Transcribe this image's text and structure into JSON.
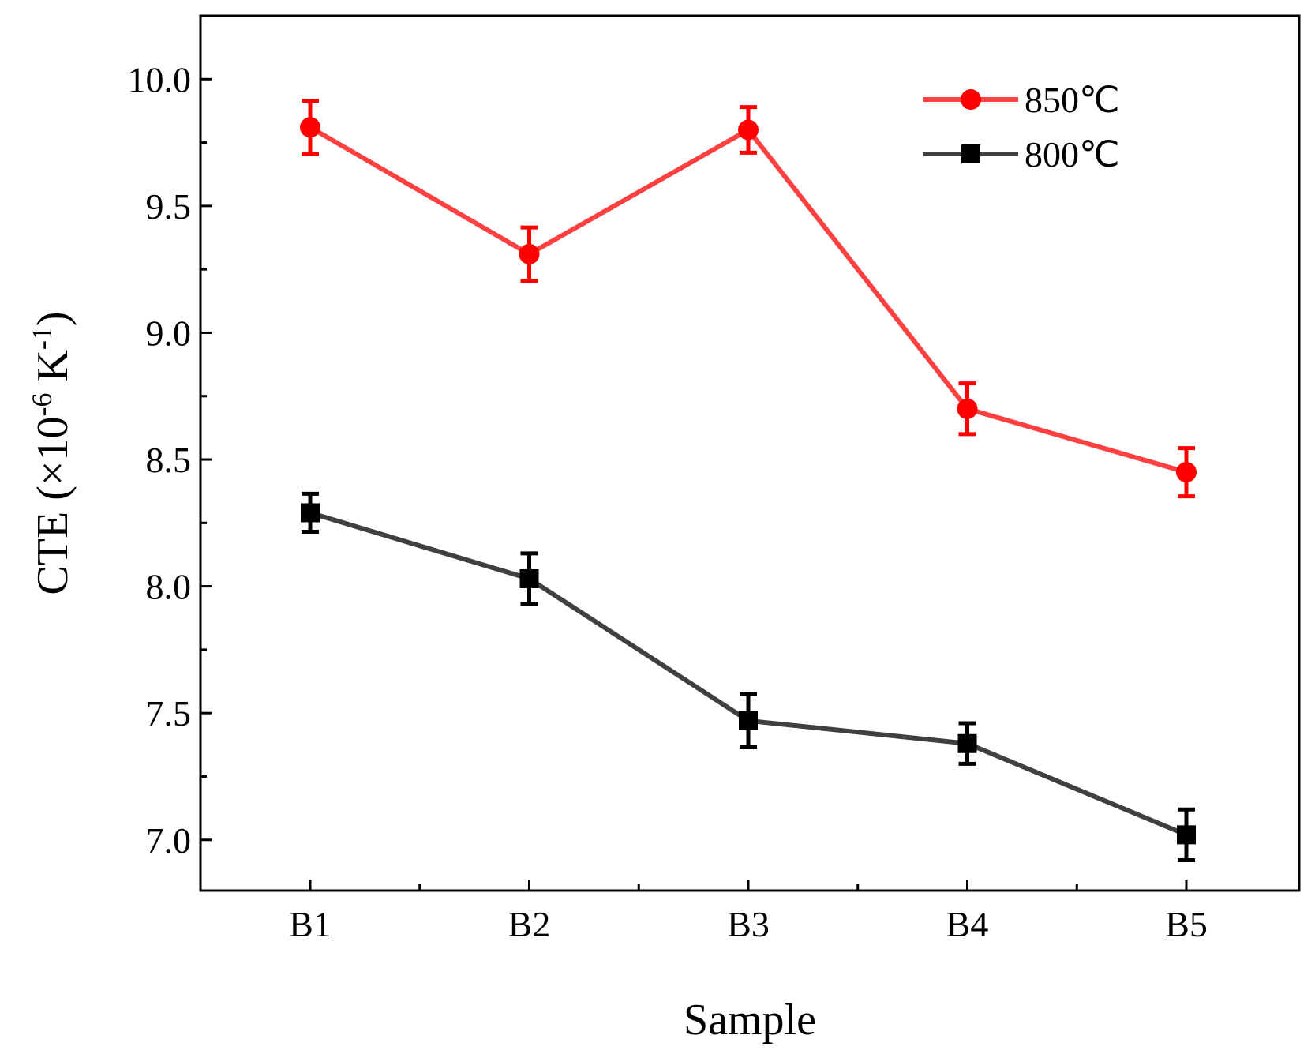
{
  "chart_data": {
    "type": "line",
    "categories": [
      "B1",
      "B2",
      "B3",
      "B4",
      "B5"
    ],
    "xlabel": "Sample",
    "ylabel": {
      "prefix": "CTE (",
      "times": "×10",
      "exp1": "-6",
      "unit": " K",
      "exp2": "-1",
      "suffix": ")"
    },
    "ylim": [
      6.8,
      10.25
    ],
    "yticks": [
      7.0,
      7.5,
      8.0,
      8.5,
      9.0,
      9.5,
      10.0
    ],
    "ytick_labels": [
      "7.0",
      "7.5",
      "8.0",
      "8.5",
      "9.0",
      "9.5",
      "10.0"
    ],
    "grid": false,
    "legend_position": "top-right",
    "series": [
      {
        "name": "850℃",
        "color": "#ff0000",
        "line_color": "#ff4040",
        "marker": "circle",
        "values": [
          9.81,
          9.31,
          9.8,
          8.7,
          8.45
        ],
        "errors": [
          0.105,
          0.105,
          0.09,
          0.1,
          0.095
        ]
      },
      {
        "name": "800℃",
        "color": "#000000",
        "line_color": "#404040",
        "marker": "square",
        "values": [
          8.29,
          8.03,
          7.47,
          7.38,
          7.02
        ],
        "errors": [
          0.075,
          0.1,
          0.105,
          0.08,
          0.1
        ]
      }
    ]
  }
}
